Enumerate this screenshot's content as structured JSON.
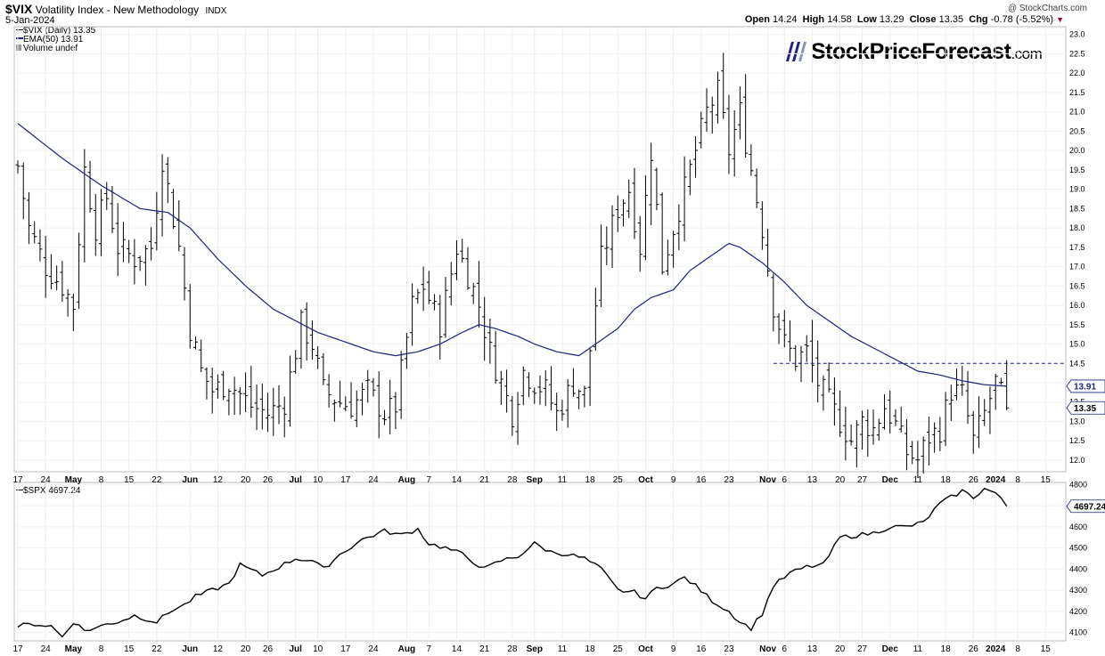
{
  "header": {
    "symbol": "$VIX",
    "name": "Volatility Index - New Methodology",
    "exchange": "INDX",
    "date": "5-Jan-2024",
    "watermark": "@ StockCharts.com",
    "ohlc": {
      "open_label": "Open",
      "open": "14.24",
      "high_label": "High",
      "high": "14.58",
      "low_label": "Low",
      "low": "13.29",
      "close_label": "Close",
      "close": "13.35",
      "chg_label": "Chg",
      "chg": "-0.78 (-5.52%)"
    }
  },
  "logo": {
    "name": "StockPriceForecast",
    "suffix": ".com"
  },
  "legend": {
    "main": "$VIX (Daily) 13.35",
    "ema": "EMA(50) 13.91",
    "volume": "Volume undef"
  },
  "sub_legend": "$SPX 4697.24",
  "price_badges": {
    "vix_close": "13.35",
    "ema": "13.91",
    "spx_close": "4697.24"
  },
  "x_axis_labels": [
    {
      "t": "17",
      "i": 0
    },
    {
      "t": "24",
      "i": 5
    },
    {
      "t": "May",
      "i": 10,
      "b": true
    },
    {
      "t": "8",
      "i": 15
    },
    {
      "t": "15",
      "i": 20
    },
    {
      "t": "22",
      "i": 25
    },
    {
      "t": "Jun",
      "i": 31,
      "b": true
    },
    {
      "t": "12",
      "i": 36
    },
    {
      "t": "20",
      "i": 41
    },
    {
      "t": "26",
      "i": 45
    },
    {
      "t": "Jul",
      "i": 50,
      "b": true
    },
    {
      "t": "10",
      "i": 54
    },
    {
      "t": "17",
      "i": 59
    },
    {
      "t": "24",
      "i": 64
    },
    {
      "t": "Aug",
      "i": 70,
      "b": true
    },
    {
      "t": "7",
      "i": 74
    },
    {
      "t": "14",
      "i": 79
    },
    {
      "t": "21",
      "i": 84
    },
    {
      "t": "28",
      "i": 89
    },
    {
      "t": "Sep",
      "i": 93,
      "b": true
    },
    {
      "t": "11",
      "i": 98
    },
    {
      "t": "18",
      "i": 103
    },
    {
      "t": "25",
      "i": 108
    },
    {
      "t": "Oct",
      "i": 113,
      "b": true
    },
    {
      "t": "9",
      "i": 118
    },
    {
      "t": "16",
      "i": 123
    },
    {
      "t": "23",
      "i": 128
    },
    {
      "t": "Nov",
      "i": 135,
      "b": true
    },
    {
      "t": "6",
      "i": 138
    },
    {
      "t": "13",
      "i": 143
    },
    {
      "t": "20",
      "i": 148
    },
    {
      "t": "27",
      "i": 152
    },
    {
      "t": "Dec",
      "i": 157,
      "b": true
    },
    {
      "t": "11",
      "i": 162
    },
    {
      "t": "18",
      "i": 167
    },
    {
      "t": "26",
      "i": 172
    },
    {
      "t": "2024",
      "i": 176,
      "b": true
    },
    {
      "t": "8",
      "i": 180
    },
    {
      "t": "15",
      "i": 185
    }
  ],
  "chart_data": [
    {
      "type": "line",
      "name": "$VIX (Daily)",
      "style": "ohlc-bars",
      "ylim": [
        11.7,
        23.2
      ],
      "yticks": [
        12.0,
        12.5,
        13.0,
        13.5,
        14.0,
        14.5,
        15.0,
        15.5,
        16.0,
        16.5,
        17.0,
        17.5,
        18.0,
        18.5,
        19.0,
        19.5,
        20.0,
        20.5,
        21.0,
        21.5,
        22.0,
        22.5,
        23.0
      ],
      "x_start": "2023-04-17",
      "trading_days_shown": 189,
      "last_index": 178,
      "resistance_line": {
        "value": 14.5,
        "from_index": 136,
        "to_index": 189,
        "style": "dashed"
      },
      "close_anchors": [
        [
          0,
          19.6
        ],
        [
          2,
          18.0
        ],
        [
          5,
          17.0
        ],
        [
          8,
          16.5
        ],
        [
          10,
          16.0
        ],
        [
          12,
          19.5
        ],
        [
          14,
          18.0
        ],
        [
          16,
          18.8
        ],
        [
          18,
          17.5
        ],
        [
          21,
          17.2
        ],
        [
          24,
          17.5
        ],
        [
          26,
          19.8
        ],
        [
          29,
          17.5
        ],
        [
          31,
          15.4
        ],
        [
          33,
          14.3
        ],
        [
          35,
          13.8
        ],
        [
          38,
          14.0
        ],
        [
          42,
          13.4
        ],
        [
          45,
          13.2
        ],
        [
          48,
          13.5
        ],
        [
          51,
          15.5
        ],
        [
          53,
          15.0
        ],
        [
          55,
          13.8
        ],
        [
          58,
          13.5
        ],
        [
          60,
          13.4
        ],
        [
          63,
          13.8
        ],
        [
          66,
          13.2
        ],
        [
          68,
          13.4
        ],
        [
          71,
          16.0
        ],
        [
          73,
          16.5
        ],
        [
          76,
          15.5
        ],
        [
          79,
          17.5
        ],
        [
          81,
          16.8
        ],
        [
          83,
          16.0
        ],
        [
          85,
          14.8
        ],
        [
          87,
          14.0
        ],
        [
          89,
          13.2
        ],
        [
          91,
          14.3
        ],
        [
          93,
          14.0
        ],
        [
          95,
          13.8
        ],
        [
          97,
          13.2
        ],
        [
          100,
          14.0
        ],
        [
          102,
          13.7
        ],
        [
          105,
          17.2
        ],
        [
          108,
          18.5
        ],
        [
          110,
          19.0
        ],
        [
          112,
          17.5
        ],
        [
          114,
          20.0
        ],
        [
          116,
          17.0
        ],
        [
          118,
          18.0
        ],
        [
          121,
          19.5
        ],
        [
          124,
          21.0
        ],
        [
          126,
          21.5
        ],
        [
          128,
          20.0
        ],
        [
          130,
          21.0
        ],
        [
          132,
          19.5
        ],
        [
          134,
          18.0
        ],
        [
          136,
          16.0
        ],
        [
          138,
          15.0
        ],
        [
          140,
          14.6
        ],
        [
          142,
          14.8
        ],
        [
          144,
          14.0
        ],
        [
          146,
          13.5
        ],
        [
          148,
          13.0
        ],
        [
          150,
          12.5
        ],
        [
          152,
          13.0
        ],
        [
          154,
          12.8
        ],
        [
          156,
          13.4
        ],
        [
          158,
          12.9
        ],
        [
          160,
          12.2
        ],
        [
          162,
          12.0
        ],
        [
          164,
          12.6
        ],
        [
          166,
          12.8
        ],
        [
          168,
          13.8
        ],
        [
          170,
          13.7
        ],
        [
          172,
          12.5
        ],
        [
          174,
          13.2
        ],
        [
          176,
          14.0
        ],
        [
          178,
          13.35
        ]
      ],
      "ema50": {
        "name": "EMA(50)",
        "color": "#1a237e",
        "anchors": [
          [
            0,
            20.7
          ],
          [
            8,
            19.8
          ],
          [
            15,
            19.1
          ],
          [
            22,
            18.5
          ],
          [
            27,
            18.4
          ],
          [
            31,
            18.0
          ],
          [
            36,
            17.2
          ],
          [
            41,
            16.5
          ],
          [
            46,
            15.9
          ],
          [
            50,
            15.6
          ],
          [
            54,
            15.3
          ],
          [
            60,
            15.0
          ],
          [
            64,
            14.8
          ],
          [
            68,
            14.7
          ],
          [
            72,
            14.8
          ],
          [
            76,
            15.0
          ],
          [
            80,
            15.3
          ],
          [
            83,
            15.5
          ],
          [
            86,
            15.4
          ],
          [
            90,
            15.2
          ],
          [
            93,
            15.0
          ],
          [
            97,
            14.8
          ],
          [
            101,
            14.7
          ],
          [
            104,
            15.0
          ],
          [
            108,
            15.4
          ],
          [
            111,
            15.9
          ],
          [
            114,
            16.2
          ],
          [
            118,
            16.4
          ],
          [
            121,
            16.9
          ],
          [
            125,
            17.3
          ],
          [
            128,
            17.6
          ],
          [
            130,
            17.5
          ],
          [
            134,
            17.1
          ],
          [
            138,
            16.6
          ],
          [
            142,
            16.0
          ],
          [
            146,
            15.6
          ],
          [
            150,
            15.2
          ],
          [
            154,
            14.9
          ],
          [
            158,
            14.6
          ],
          [
            162,
            14.3
          ],
          [
            166,
            14.2
          ],
          [
            170,
            14.05
          ],
          [
            174,
            13.95
          ],
          [
            178,
            13.91
          ]
        ]
      },
      "colors": {
        "bars": "#000000",
        "ema": "#1a237e",
        "resistance": "#1a237e"
      }
    },
    {
      "type": "line",
      "name": "$SPX",
      "ylim": [
        4060,
        4810
      ],
      "yticks": [
        4100,
        4200,
        4300,
        4400,
        4500,
        4600,
        4700,
        4800
      ],
      "last_value": 4697.24,
      "anchors": [
        [
          0,
          4130
        ],
        [
          3,
          4140
        ],
        [
          6,
          4130
        ],
        [
          8,
          4080
        ],
        [
          10,
          4150
        ],
        [
          12,
          4110
        ],
        [
          14,
          4120
        ],
        [
          16,
          4140
        ],
        [
          18,
          4150
        ],
        [
          21,
          4180
        ],
        [
          25,
          4150
        ],
        [
          28,
          4210
        ],
        [
          30,
          4230
        ],
        [
          32,
          4270
        ],
        [
          35,
          4300
        ],
        [
          38,
          4330
        ],
        [
          40,
          4420
        ],
        [
          44,
          4370
        ],
        [
          47,
          4410
        ],
        [
          50,
          4450
        ],
        [
          53,
          4440
        ],
        [
          55,
          4400
        ],
        [
          58,
          4470
        ],
        [
          62,
          4540
        ],
        [
          66,
          4580
        ],
        [
          69,
          4560
        ],
        [
          72,
          4590
        ],
        [
          74,
          4520
        ],
        [
          77,
          4500
        ],
        [
          80,
          4470
        ],
        [
          84,
          4400
        ],
        [
          87,
          4440
        ],
        [
          90,
          4460
        ],
        [
          93,
          4520
        ],
        [
          96,
          4480
        ],
        [
          99,
          4470
        ],
        [
          102,
          4450
        ],
        [
          105,
          4400
        ],
        [
          108,
          4300
        ],
        [
          111,
          4290
        ],
        [
          113,
          4260
        ],
        [
          115,
          4310
        ],
        [
          118,
          4330
        ],
        [
          120,
          4360
        ],
        [
          122,
          4320
        ],
        [
          125,
          4250
        ],
        [
          128,
          4200
        ],
        [
          130,
          4150
        ],
        [
          132,
          4120
        ],
        [
          134,
          4190
        ],
        [
          136,
          4320
        ],
        [
          139,
          4380
        ],
        [
          142,
          4410
        ],
        [
          145,
          4420
        ],
        [
          148,
          4550
        ],
        [
          151,
          4560
        ],
        [
          154,
          4570
        ],
        [
          157,
          4600
        ],
        [
          160,
          4600
        ],
        [
          163,
          4620
        ],
        [
          166,
          4710
        ],
        [
          168,
          4740
        ],
        [
          170,
          4770
        ],
        [
          172,
          4740
        ],
        [
          174,
          4780
        ],
        [
          176,
          4760
        ],
        [
          178,
          4697
        ]
      ],
      "colors": {
        "line": "#000000"
      }
    }
  ]
}
